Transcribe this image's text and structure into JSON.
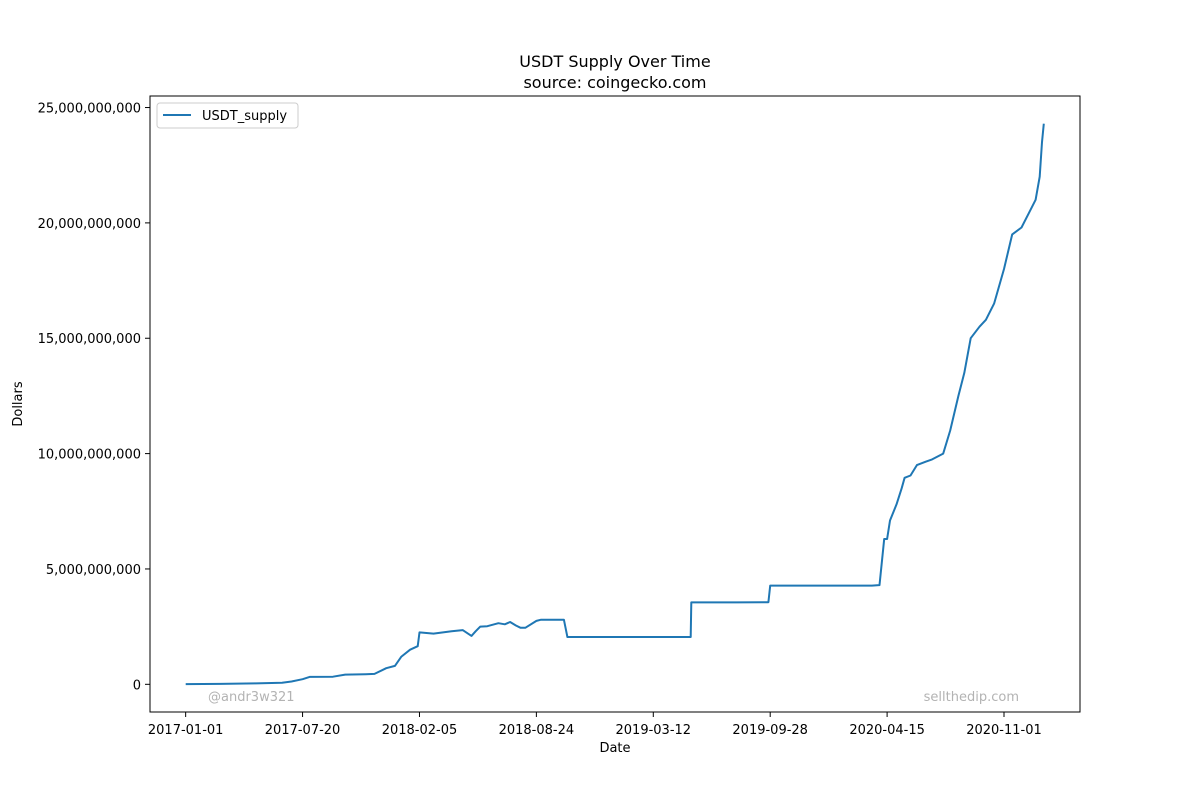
{
  "chart_data": {
    "type": "line",
    "title": "USDT Supply Over Time",
    "subtitle": "source: coingecko.com",
    "xlabel": "Date",
    "ylabel": "Dollars",
    "ylim": [
      -1200000000,
      25500000000
    ],
    "xlim": [
      "2016-11-01",
      "2021-03-11"
    ],
    "x_ticks": [
      "2017-01-01",
      "2017-07-20",
      "2018-02-05",
      "2018-08-24",
      "2019-03-12",
      "2019-09-28",
      "2020-04-15",
      "2020-11-01"
    ],
    "y_ticks": [
      0,
      5000000000,
      10000000000,
      15000000000,
      20000000000,
      25000000000
    ],
    "y_tick_labels": [
      "0",
      "5,000,000,000",
      "10,000,000,000",
      "15,000,000,000",
      "20,000,000,000",
      "25,000,000,000"
    ],
    "grid": false,
    "legend_position": "top-left",
    "series": [
      {
        "name": "USDT_supply",
        "color": "#1f77b4",
        "x": [
          "2017-01-01",
          "2017-03-01",
          "2017-05-01",
          "2017-06-15",
          "2017-07-01",
          "2017-07-20",
          "2017-08-01",
          "2017-09-10",
          "2017-10-01",
          "2017-11-05",
          "2017-11-20",
          "2017-12-10",
          "2017-12-25",
          "2018-01-05",
          "2018-01-20",
          "2018-02-02",
          "2018-02-05",
          "2018-03-01",
          "2018-04-01",
          "2018-04-20",
          "2018-05-05",
          "2018-05-12",
          "2018-05-20",
          "2018-06-01",
          "2018-06-20",
          "2018-07-01",
          "2018-07-10",
          "2018-07-20",
          "2018-07-28",
          "2018-08-05",
          "2018-08-24",
          "2018-09-01",
          "2018-09-10",
          "2018-10-10",
          "2018-10-16",
          "2018-12-01",
          "2019-01-01",
          "2019-02-01",
          "2019-03-12",
          "2019-04-01",
          "2019-05-01",
          "2019-05-15",
          "2019-05-16",
          "2019-07-01",
          "2019-08-01",
          "2019-09-25",
          "2019-09-28",
          "2020-01-01",
          "2020-03-01",
          "2020-03-20",
          "2020-04-01",
          "2020-04-02",
          "2020-04-10",
          "2020-04-15",
          "2020-04-20",
          "2020-05-01",
          "2020-05-10",
          "2020-05-15",
          "2020-05-25",
          "2020-06-05",
          "2020-06-20",
          "2020-07-01",
          "2020-07-20",
          "2020-08-01",
          "2020-08-15",
          "2020-08-25",
          "2020-09-05",
          "2020-09-20",
          "2020-10-01",
          "2020-10-15",
          "2020-11-01",
          "2020-11-15",
          "2020-12-01",
          "2020-12-15",
          "2020-12-25",
          "2021-01-01",
          "2021-01-05",
          "2021-01-08"
        ],
        "values": [
          10000000,
          20000000,
          40000000,
          70000000,
          120000000,
          220000000,
          320000000,
          330000000,
          420000000,
          440000000,
          450000000,
          700000000,
          800000000,
          1200000000,
          1500000000,
          1650000000,
          2250000000,
          2200000000,
          2300000000,
          2350000000,
          2100000000,
          2300000000,
          2500000000,
          2520000000,
          2650000000,
          2600000000,
          2700000000,
          2550000000,
          2450000000,
          2450000000,
          2750000000,
          2800000000,
          2800000000,
          2800000000,
          2050000000,
          2050000000,
          2050000000,
          2050000000,
          2050000000,
          2050000000,
          2050000000,
          2050000000,
          3550000000,
          3550000000,
          3550000000,
          3560000000,
          4280000000,
          4280000000,
          4280000000,
          4280000000,
          4300000000,
          4300000000,
          6300000000,
          6300000000,
          7100000000,
          7800000000,
          8500000000,
          8950000000,
          9050000000,
          9500000000,
          9650000000,
          9750000000,
          10000000000,
          11000000000,
          12500000000,
          13500000000,
          15000000000,
          15500000000,
          15800000000,
          16500000000,
          18000000000,
          19500000000,
          19800000000,
          20500000000,
          21000000000,
          22000000000,
          23500000000,
          24300000000
        ]
      }
    ],
    "watermarks": [
      "@andr3w321",
      "sellthedip.com"
    ]
  }
}
